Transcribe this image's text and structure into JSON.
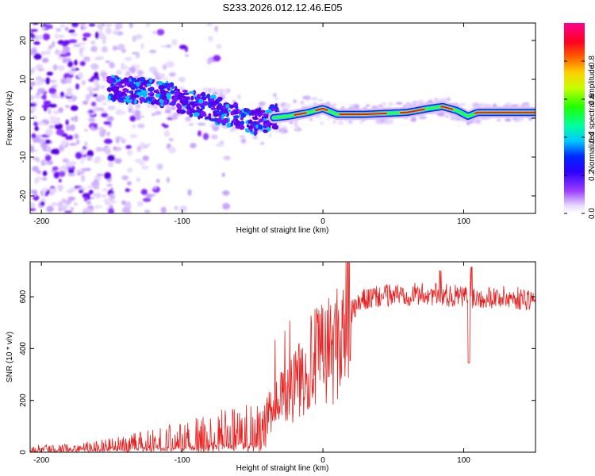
{
  "title": "S233.2026.012.12.46.E05",
  "colors": {
    "snr_line": "#e8201f",
    "axis": "#000000"
  },
  "chart_data": [
    {
      "type": "heatmap",
      "name": "spectrogram",
      "xlabel": "Height of straight line (km)",
      "ylabel": "Frequency (Hz)",
      "xlim": [
        -208,
        151
      ],
      "ylim": [
        -24.5,
        24.5
      ],
      "x_ticks": [
        -200,
        -100,
        0,
        100
      ],
      "y_ticks": [
        -20,
        -10,
        0,
        10,
        20
      ],
      "colorbar": {
        "label": "Normalized spectral amplitude",
        "range": [
          0,
          1
        ],
        "ticks": [
          0.0,
          0.2,
          0.4,
          0.6,
          0.8
        ]
      },
      "ridge": [
        {
          "x": -150,
          "y": 7.5
        },
        {
          "x": -130,
          "y": 7.0
        },
        {
          "x": -110,
          "y": 6.0
        },
        {
          "x": -95,
          "y": 4.0
        },
        {
          "x": -80,
          "y": 2.5
        },
        {
          "x": -65,
          "y": 1.0
        },
        {
          "x": -50,
          "y": -1.5
        },
        {
          "x": -38,
          "y": 0.0
        },
        {
          "x": -25,
          "y": 0.5
        },
        {
          "x": -10,
          "y": 1.5
        },
        {
          "x": 0,
          "y": 2.5
        },
        {
          "x": 10,
          "y": 1.0
        },
        {
          "x": 30,
          "y": 1.0
        },
        {
          "x": 60,
          "y": 1.5
        },
        {
          "x": 75,
          "y": 2.5
        },
        {
          "x": 85,
          "y": 3.0
        },
        {
          "x": 95,
          "y": 2.0
        },
        {
          "x": 103,
          "y": 0.5
        },
        {
          "x": 110,
          "y": 1.5
        },
        {
          "x": 150,
          "y": 1.5
        }
      ]
    },
    {
      "type": "line",
      "name": "snr",
      "xlabel": "Height of straight line (km)",
      "ylabel": "SNR (10 * v/v)",
      "xlim": [
        -208,
        151
      ],
      "ylim": [
        0,
        735
      ],
      "x_ticks": [
        -200,
        -100,
        0,
        100
      ],
      "y_ticks": [
        0,
        200,
        400,
        600
      ],
      "series": [
        {
          "name": "SNR",
          "x": [
            -208,
            -180,
            -160,
            -140,
            -120,
            -100,
            -80,
            -60,
            -40,
            -30,
            -20,
            -10,
            0,
            10,
            20,
            30,
            50,
            80,
            100,
            120,
            151
          ],
          "y": [
            15,
            18,
            25,
            35,
            50,
            65,
            80,
            100,
            140,
            200,
            260,
            340,
            380,
            420,
            540,
            590,
            610,
            610,
            600,
            600,
            590
          ]
        }
      ]
    }
  ]
}
